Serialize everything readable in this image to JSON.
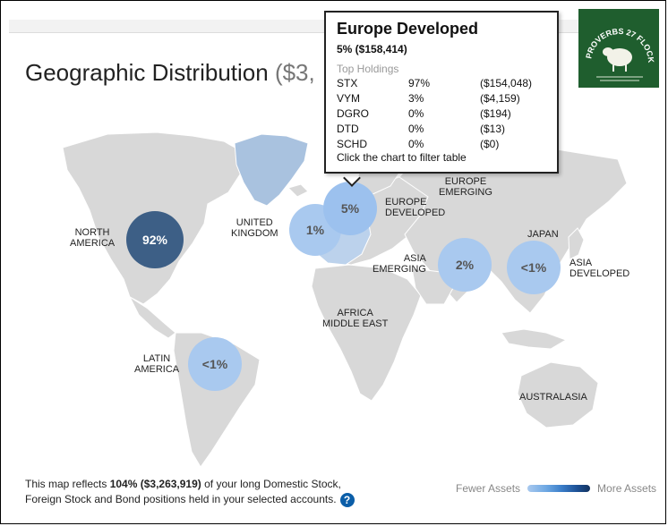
{
  "title": {
    "main": "Geographic Distribution",
    "amount": "($3,"
  },
  "regions": [
    {
      "id": "north-america",
      "label_line1": "NORTH",
      "label_line2": "AMERICA",
      "bubble": "92%",
      "color": "#3d5f86"
    },
    {
      "id": "united-kingdom",
      "label_line1": "UNITED",
      "label_line2": "KINGDOM",
      "bubble": "1%",
      "color": "#a9c9ef"
    },
    {
      "id": "europe-developed",
      "label_line1": "EUROPE",
      "label_line2": "DEVELOPED",
      "bubble": "5%",
      "color": "#9cc1ee"
    },
    {
      "id": "europe-emerging",
      "label_line1": "EUROPE",
      "label_line2": "EMERGING",
      "bubble": "",
      "color": ""
    },
    {
      "id": "asia-emerging",
      "label_line1": "ASIA",
      "label_line2": "EMERGING",
      "bubble": "2%",
      "color": "#a9c9ef"
    },
    {
      "id": "japan",
      "label_line1": "JAPAN",
      "label_line2": "",
      "bubble": "",
      "color": ""
    },
    {
      "id": "asia-developed",
      "label_line1": "ASIA",
      "label_line2": "DEVELOPED",
      "bubble": "<1%",
      "color": "#a9c9ef"
    },
    {
      "id": "africa-middle-east",
      "label_line1": "AFRICA",
      "label_line2": "MIDDLE EAST",
      "bubble": "",
      "color": ""
    },
    {
      "id": "latin-america",
      "label_line1": "LATIN",
      "label_line2": "AMERICA",
      "bubble": "<1%",
      "color": "#a9c9ef"
    },
    {
      "id": "australasia",
      "label_line1": "AUSTRALASIA",
      "label_line2": "",
      "bubble": "",
      "color": ""
    }
  ],
  "tooltip": {
    "title": "Europe Developed",
    "subtitle": "5% ($158,414)",
    "heading": "Top Holdings",
    "holdings": [
      {
        "symbol": "STX",
        "pct": "97%",
        "value": "($154,048)"
      },
      {
        "symbol": "VYM",
        "pct": "3%",
        "value": "($4,159)"
      },
      {
        "symbol": "DGRO",
        "pct": "0%",
        "value": "($194)"
      },
      {
        "symbol": "DTD",
        "pct": "0%",
        "value": "($13)"
      },
      {
        "symbol": "SCHD",
        "pct": "0%",
        "value": "($0)"
      }
    ],
    "footer": "Click the chart to filter table"
  },
  "logo": {
    "text": "PROVERBS 27 FLOCKS",
    "bg": "#1f5e2e"
  },
  "footnote": {
    "prefix": "This map reflects ",
    "bold": "104% ($3,263,919)",
    "suffix": " of your long Domestic Stock,",
    "line2": "Foreign Stock and Bond positions held in your selected accounts.",
    "help": "?"
  },
  "legend": {
    "fewer": "Fewer Assets",
    "more": "More Assets"
  }
}
